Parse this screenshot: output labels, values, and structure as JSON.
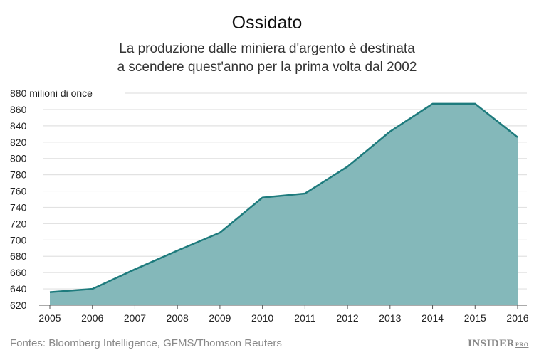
{
  "chart_data": {
    "type": "area",
    "title": "Ossidato",
    "subtitle_lines": [
      "La produzione dalle miniera d'argento è destinata",
      "a scendere quest'anno per la prima volta dal 2002"
    ],
    "ylabel": "milioni di once",
    "x": [
      2005,
      2006,
      2007,
      2008,
      2009,
      2010,
      2011,
      2012,
      2013,
      2014,
      2015,
      2016
    ],
    "values": [
      636,
      640,
      664,
      687,
      709,
      752,
      757,
      790,
      833,
      867,
      867,
      826
    ],
    "ylim": [
      620,
      880
    ],
    "yticks": [
      620,
      640,
      660,
      680,
      700,
      720,
      740,
      760,
      780,
      800,
      820,
      840,
      860,
      880
    ],
    "grid": true,
    "colors": {
      "line": "#1e7b7d",
      "fill": "#84b8ba",
      "grid": "#e2e2e2"
    }
  },
  "source": "Fontes: Bloomberg Intelligence, GFMS/Thomson Reuters",
  "logo": {
    "main": "INSIDER",
    "suffix": "PRO"
  }
}
